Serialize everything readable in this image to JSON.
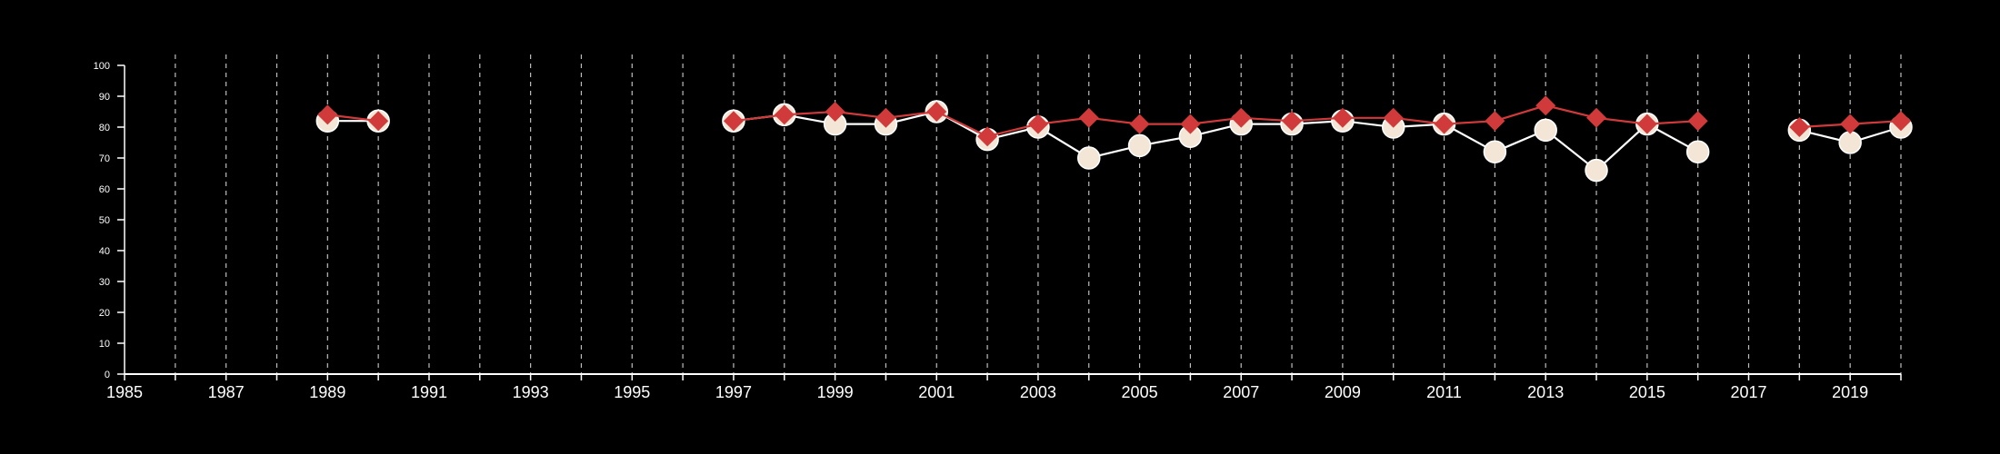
{
  "chart_data": {
    "type": "line",
    "title": "",
    "xlabel": "",
    "ylabel": "",
    "xlim": [
      1985,
      2020
    ],
    "ylim": [
      0,
      100
    ],
    "x_ticks": [
      1985,
      1987,
      1989,
      1991,
      1993,
      1995,
      1997,
      1999,
      2001,
      2003,
      2005,
      2007,
      2009,
      2011,
      2013,
      2015,
      2017,
      2019
    ],
    "x_tick_labels": [
      "1985",
      "1987",
      "1989",
      "1991",
      "1993",
      "1995",
      "1997",
      "1999",
      "2001",
      "2003",
      "2005",
      "2007",
      "2009",
      "2011",
      "2013",
      "2015",
      "2017",
      "2019"
    ],
    "y_ticks": [
      0,
      10,
      20,
      30,
      40,
      50,
      60,
      70,
      80,
      90,
      100
    ],
    "y_tick_labels": [
      "0",
      "10",
      "20",
      "30",
      "40",
      "50",
      "60",
      "70",
      "80",
      "90",
      "100"
    ],
    "grid": "vertical dashed lines at every year",
    "legend": "none",
    "x": [
      1989,
      1990,
      1997,
      1998,
      1999,
      2000,
      2001,
      2002,
      2003,
      2004,
      2005,
      2006,
      2007,
      2008,
      2009,
      2010,
      2011,
      2012,
      2013,
      2014,
      2015,
      2016,
      2018,
      2019,
      2020
    ],
    "series": [
      {
        "marker": "circle",
        "color": "#f3e6d6",
        "values": [
          82,
          82,
          82,
          84,
          81,
          81,
          85,
          76,
          80,
          70,
          74,
          77,
          81,
          81,
          82,
          80,
          81,
          72,
          79,
          66,
          81,
          72,
          79,
          75,
          80
        ]
      },
      {
        "marker": "diamond",
        "color": "#d13a3a",
        "values": [
          84,
          82,
          82,
          84,
          85,
          83,
          85,
          77,
          81,
          83,
          81,
          81,
          83,
          82,
          83,
          83,
          81,
          82,
          87,
          83,
          81,
          82,
          80,
          81,
          82
        ]
      }
    ]
  }
}
